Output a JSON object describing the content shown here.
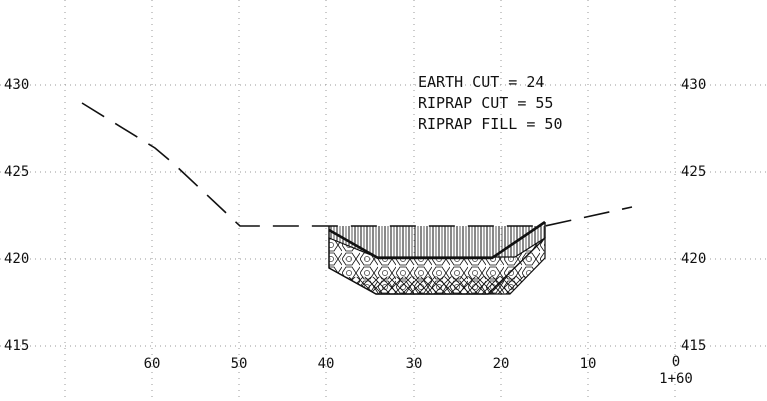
{
  "station": "1+60",
  "elevation_labels_left": [
    "430",
    "425",
    "420",
    "415"
  ],
  "elevation_labels_right": [
    "430",
    "425",
    "420",
    "415"
  ],
  "offset_labels": [
    "60",
    "50",
    "40",
    "30",
    "20",
    "10",
    "0"
  ],
  "quantities": {
    "earth_cut": "EARTH CUT = 24",
    "riprap_cut": "RIPRAP CUT = 55",
    "riprap_fill": "RIPRAP FILL = 50"
  },
  "colors": {
    "line": "#111111",
    "grid": "#9a9a9a",
    "background": "#ffffff"
  }
}
